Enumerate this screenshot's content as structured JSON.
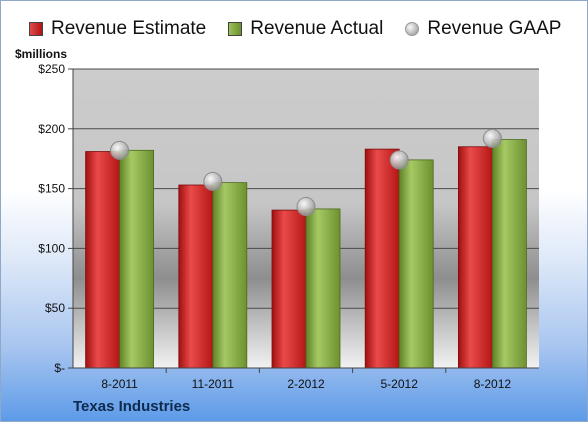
{
  "chart_data": {
    "type": "bar",
    "title": "",
    "unit_label": "$millions",
    "footer_label": "Texas Industries",
    "categories": [
      "8-2011",
      "11-2011",
      "2-2012",
      "5-2012",
      "8-2012"
    ],
    "series": [
      {
        "name": "Revenue Estimate",
        "kind": "bar",
        "color": "#cc1f1f",
        "values": [
          181,
          153,
          132,
          183,
          185
        ]
      },
      {
        "name": "Revenue Actual",
        "kind": "bar",
        "color": "#7ea33b",
        "values": [
          182,
          155,
          133,
          174,
          191
        ]
      },
      {
        "name": "Revenue GAAP",
        "kind": "marker",
        "color": "#b0b0b0",
        "values": [
          182,
          156,
          135,
          174,
          192
        ]
      }
    ],
    "y_ticks": [
      "$-",
      "$50",
      "$100",
      "$150",
      "$200",
      "$250"
    ],
    "y_tick_values": [
      0,
      50,
      100,
      150,
      200,
      250
    ],
    "ylim": [
      0,
      250
    ],
    "grid": true,
    "legend": "top"
  }
}
